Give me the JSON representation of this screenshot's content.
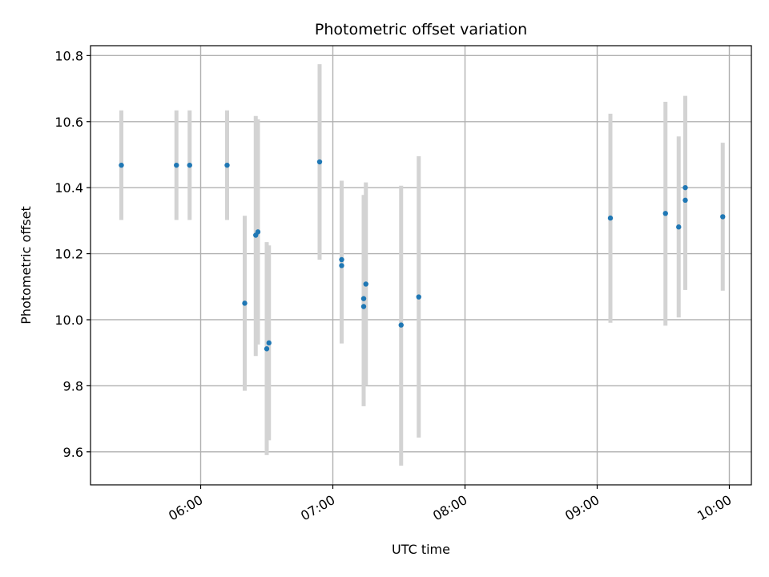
{
  "chart_data": {
    "type": "scatter",
    "title": "Photometric offset variation",
    "xlabel": "UTC time",
    "ylabel": "Photometric offset",
    "x_axis_type": "time",
    "xlim": [
      "05:10",
      "10:10"
    ],
    "ylim": [
      9.5,
      10.83
    ],
    "x_ticks": [
      "06:00",
      "07:00",
      "08:00",
      "09:00",
      "10:00"
    ],
    "y_ticks": [
      9.6,
      9.8,
      10.0,
      10.2,
      10.4,
      10.6,
      10.8
    ],
    "grid": true,
    "marker_color": "#1f77b4",
    "errorbar_color": "#d3d3d3",
    "series": [
      {
        "points": [
          {
            "x": "05:24",
            "y": 10.468,
            "low": 10.302,
            "high": 10.634
          },
          {
            "x": "05:49",
            "y": 10.468,
            "low": 10.302,
            "high": 10.634
          },
          {
            "x": "05:55",
            "y": 10.468,
            "low": 10.302,
            "high": 10.634
          },
          {
            "x": "06:12",
            "y": 10.468,
            "low": 10.302,
            "high": 10.634
          },
          {
            "x": "06:20",
            "y": 10.05,
            "low": 9.785,
            "high": 10.315
          },
          {
            "x": "06:25",
            "y": 10.256,
            "low": 9.89,
            "high": 10.617
          },
          {
            "x": "06:26",
            "y": 10.266,
            "low": 9.925,
            "high": 10.607
          },
          {
            "x": "06:30",
            "y": 9.912,
            "low": 9.59,
            "high": 10.235
          },
          {
            "x": "06:31",
            "y": 9.93,
            "low": 9.635,
            "high": 10.225
          },
          {
            "x": "06:54",
            "y": 10.478,
            "low": 10.182,
            "high": 10.774
          },
          {
            "x": "07:04",
            "y": 10.182,
            "low": 9.94,
            "high": 10.421
          },
          {
            "x": "07:04",
            "y": 10.164,
            "low": 9.928,
            "high": 10.4
          },
          {
            "x": "07:14",
            "y": 10.04,
            "low": 9.738,
            "high": 10.375
          },
          {
            "x": "07:14",
            "y": 10.064,
            "low": 9.75,
            "high": 10.378
          },
          {
            "x": "07:15",
            "y": 10.108,
            "low": 9.8,
            "high": 10.416
          },
          {
            "x": "07:31",
            "y": 9.984,
            "low": 9.558,
            "high": 10.406
          },
          {
            "x": "07:39",
            "y": 10.069,
            "low": 9.643,
            "high": 10.495
          },
          {
            "x": "09:06",
            "y": 10.308,
            "low": 9.991,
            "high": 10.624
          },
          {
            "x": "09:31",
            "y": 10.322,
            "low": 9.982,
            "high": 10.66
          },
          {
            "x": "09:37",
            "y": 10.281,
            "low": 10.007,
            "high": 10.555
          },
          {
            "x": "09:40",
            "y": 10.362,
            "low": 10.09,
            "high": 10.633
          },
          {
            "x": "09:40",
            "y": 10.4,
            "low": 10.125,
            "high": 10.678
          },
          {
            "x": "09:57",
            "y": 10.312,
            "low": 10.088,
            "high": 10.536
          }
        ]
      }
    ]
  }
}
